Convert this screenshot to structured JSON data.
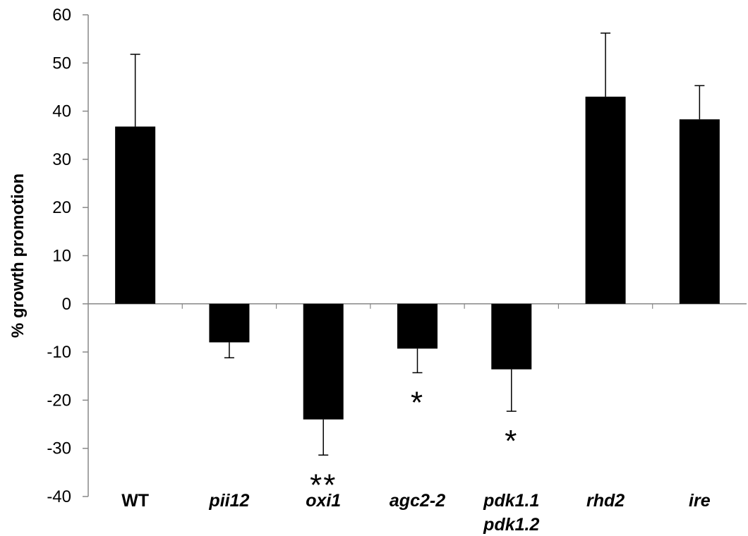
{
  "chart_data": {
    "type": "bar",
    "ylabel": "% growth promotion",
    "ylim": [
      -40,
      60
    ],
    "yticks": [
      "60",
      "50",
      "40",
      "30",
      "20",
      "10",
      "0",
      "-10",
      "-20",
      "-30",
      "-40"
    ],
    "categories": [
      {
        "lines": [
          "WT"
        ],
        "italic": false
      },
      {
        "lines": [
          "pii12"
        ],
        "italic": true
      },
      {
        "lines": [
          "oxi1"
        ],
        "italic": true
      },
      {
        "lines": [
          "agc2-2"
        ],
        "italic": true
      },
      {
        "lines": [
          "pdk1.1",
          "pdk1.2"
        ],
        "italic": true
      },
      {
        "lines": [
          "rhd2"
        ],
        "italic": true
      },
      {
        "lines": [
          "ire"
        ],
        "italic": true
      }
    ],
    "values": [
      36.8,
      -8.0,
      -24.0,
      -9.3,
      -13.6,
      43.0,
      38.3
    ],
    "error": [
      15.0,
      3.2,
      7.4,
      5.0,
      8.7,
      13.2,
      7.0
    ],
    "significance": [
      "",
      "",
      "**",
      "*",
      "*",
      "",
      ""
    ],
    "grid": false,
    "legend": "none",
    "bar_color": "#000000",
    "axis_color": "#888888"
  }
}
